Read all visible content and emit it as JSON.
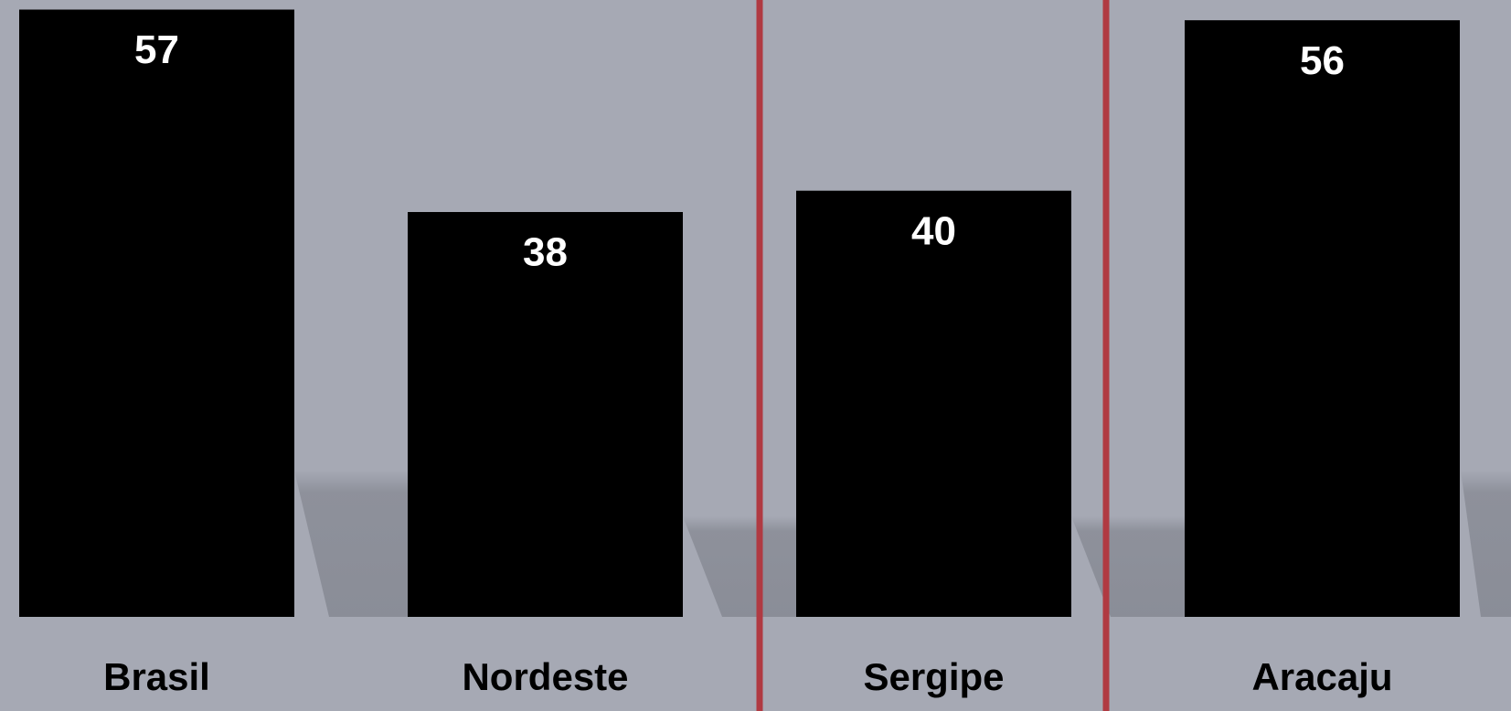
{
  "chart_data": {
    "type": "bar",
    "categories": [
      "Brasil",
      "Nordeste",
      "Sergipe",
      "Aracaju"
    ],
    "values": [
      57,
      38,
      40,
      56
    ],
    "color": "#000000"
  }
}
